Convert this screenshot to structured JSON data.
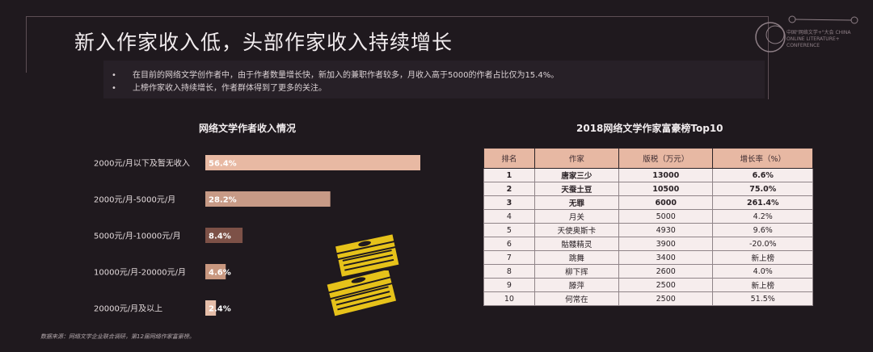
{
  "header": {
    "title": "新入作家收入低，头部作家收入持续增长",
    "logo_text": "中国\"网络文学+\"大会 CHINA ONLINE LITERATURE+ CONFERENCE"
  },
  "summary": {
    "bullets": [
      "在目前的网络文学创作者中，由于作者数量增长快，新加入的兼职作者较多，月收入高于5000的作者占比仅为15.4%。",
      "上榜作家收入持续增长，作者群体得到了更多的关注。"
    ]
  },
  "chart_data": {
    "type": "bar",
    "orientation": "horizontal",
    "title": "网络文学作者收入情况",
    "categories": [
      "2000元/月以下及暂无收入",
      "2000元/月-5000元/月",
      "5000元/月-10000元/月",
      "10000元/月-20000元/月",
      "20000元/月及以上"
    ],
    "values": [
      56.4,
      28.2,
      8.4,
      4.6,
      2.4
    ],
    "value_labels": [
      "56.4%",
      "28.2%",
      "8.4%",
      "4.6%",
      "2.4%"
    ],
    "colors": [
      "#e8b9a3",
      "#c79a86",
      "#7d5147",
      "#c8977f",
      "#e5bda8"
    ],
    "grid": false
  },
  "table": {
    "title": "2018网络文学作家富豪榜Top10",
    "headers": [
      "排名",
      "作家",
      "版税（万元）",
      "增长率（%）"
    ],
    "rows": [
      {
        "rank": "1",
        "name": "唐家三少",
        "royalty": "13000",
        "growth": "6.6%",
        "bold": true
      },
      {
        "rank": "2",
        "name": "天蚕土豆",
        "royalty": "10500",
        "growth": "75.0%",
        "bold": true
      },
      {
        "rank": "3",
        "name": "无罪",
        "royalty": "6000",
        "growth": "261.4%",
        "bold": true
      },
      {
        "rank": "4",
        "name": "月关",
        "royalty": "5000",
        "growth": "4.2%",
        "bold": false
      },
      {
        "rank": "5",
        "name": "天使奥斯卡",
        "royalty": "4930",
        "growth": "9.6%",
        "bold": false
      },
      {
        "rank": "6",
        "name": "骷髅精灵",
        "royalty": "3900",
        "growth": "-20.0%",
        "bold": false
      },
      {
        "rank": "7",
        "name": "跳舞",
        "royalty": "3400",
        "growth": "新上榜",
        "bold": false
      },
      {
        "rank": "8",
        "name": "柳下挥",
        "royalty": "2600",
        "growth": "4.0%",
        "bold": false
      },
      {
        "rank": "9",
        "name": "滕萍",
        "royalty": "2500",
        "growth": "新上榜",
        "bold": false
      },
      {
        "rank": "10",
        "name": "何常在",
        "royalty": "2500",
        "growth": "51.5%",
        "bold": false
      }
    ]
  },
  "footer": {
    "source": "数据来源：网络文学企业联合调研，第12届网络作家富豪榜。"
  },
  "icons": {
    "money": "money-stack-icon"
  }
}
